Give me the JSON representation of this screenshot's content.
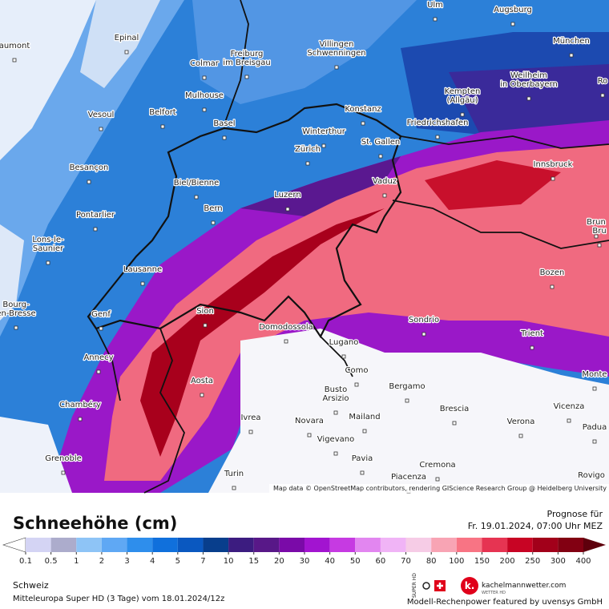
{
  "map": {
    "cities": [
      {
        "lines": [
          "Ulm"
        ]
      },
      {
        "lines": [
          "Augsburg"
        ]
      },
      {
        "lines": [
          "Epinal"
        ]
      },
      {
        "lines": [
          "aumont"
        ]
      },
      {
        "lines": [
          "Freiburg",
          "im Breisgau"
        ]
      },
      {
        "lines": [
          "Villingen",
          "Schwenningen"
        ]
      },
      {
        "lines": [
          "München"
        ]
      },
      {
        "lines": [
          "Colmar"
        ]
      },
      {
        "lines": [
          "Weilheim",
          "in Oberbayern"
        ]
      },
      {
        "lines": [
          "Ro"
        ]
      },
      {
        "lines": [
          "Mulhouse"
        ]
      },
      {
        "lines": [
          "Kempten",
          "(Allgäu)"
        ]
      },
      {
        "lines": [
          "Konstanz"
        ]
      },
      {
        "lines": [
          "Belfort"
        ]
      },
      {
        "lines": [
          "Vesoul"
        ]
      },
      {
        "lines": [
          "Basel"
        ]
      },
      {
        "lines": [
          "Friedrichshafen"
        ]
      },
      {
        "lines": [
          "Winterthur"
        ]
      },
      {
        "lines": [
          "St. Gallen"
        ]
      },
      {
        "lines": [
          "Zürich"
        ]
      },
      {
        "lines": [
          "Besançon"
        ]
      },
      {
        "lines": [
          "Innsbruck"
        ]
      },
      {
        "lines": [
          "Vaduz"
        ]
      },
      {
        "lines": [
          "Biel/Bienne"
        ]
      },
      {
        "lines": [
          "Luzern"
        ]
      },
      {
        "lines": [
          "Bern"
        ]
      },
      {
        "lines": [
          "Pontarlier"
        ]
      },
      {
        "lines": [
          "Brun"
        ]
      },
      {
        "lines": [
          "Bru"
        ]
      },
      {
        "lines": [
          "Lons-le-",
          "Saunier"
        ]
      },
      {
        "lines": [
          "Lausanne"
        ]
      },
      {
        "lines": [
          "Bozen"
        ]
      },
      {
        "lines": [
          "Bourg-",
          "en-Bresse"
        ]
      },
      {
        "lines": [
          "Sion"
        ]
      },
      {
        "lines": [
          "Genf"
        ]
      },
      {
        "lines": [
          "Sondrio"
        ]
      },
      {
        "lines": [
          "Domodossola"
        ]
      },
      {
        "lines": [
          "Trient"
        ]
      },
      {
        "lines": [
          "Lugano"
        ]
      },
      {
        "lines": [
          "Annecy"
        ]
      },
      {
        "lines": [
          "Aosta"
        ]
      },
      {
        "lines": [
          "Como"
        ]
      },
      {
        "lines": [
          "Monte"
        ]
      },
      {
        "lines": [
          "Busto",
          "Arsizio"
        ]
      },
      {
        "lines": [
          "Bergamo"
        ]
      },
      {
        "lines": [
          "Chambéry"
        ]
      },
      {
        "lines": [
          "Brescia"
        ]
      },
      {
        "lines": [
          "Vicenza"
        ]
      },
      {
        "lines": [
          "Ivrea"
        ]
      },
      {
        "lines": [
          "Novara"
        ]
      },
      {
        "lines": [
          "Mailand"
        ]
      },
      {
        "lines": [
          "Verona"
        ]
      },
      {
        "lines": [
          "Padua"
        ]
      },
      {
        "lines": [
          "Vigevano"
        ]
      },
      {
        "lines": [
          "Grenoble"
        ]
      },
      {
        "lines": [
          "Pavia"
        ]
      },
      {
        "lines": [
          "Cremona"
        ]
      },
      {
        "lines": [
          "Turin"
        ]
      },
      {
        "lines": [
          "Rovigo"
        ]
      },
      {
        "lines": [
          "Piacenza"
        ]
      }
    ],
    "attribution": "Map data © OpenStreetMap contributors, rendering GIScience Research Group @ Heidelberg University"
  },
  "legend": {
    "title": "Schneehöhe (cm)",
    "forecast_label": "Prognose für",
    "forecast_time": "Fr. 19.01.2024, 07:00 Uhr MEZ",
    "ticks": [
      0.1,
      0.5,
      1,
      2,
      3,
      4,
      5,
      7,
      10,
      15,
      20,
      30,
      40,
      50,
      60,
      70,
      80,
      100,
      150,
      200,
      250,
      300,
      400
    ],
    "colors": [
      "#ffffff",
      "#d4d4f4",
      "#acaccc",
      "#8ec4f6",
      "#5fa8f4",
      "#2e8eec",
      "#1070dc",
      "#0a58c0",
      "#083e8c",
      "#3c1c80",
      "#581888",
      "#7a0aa8",
      "#a214d0",
      "#c63ae2",
      "#e286f0",
      "#f0b4f6",
      "#f6cce6",
      "#f8a4b4",
      "#f87484",
      "#e63452",
      "#c80424",
      "#a2001a",
      "#820012",
      "#5e000c"
    ]
  },
  "footer": {
    "region": "Schweiz",
    "model": "Mitteleuropa Super HD (3 Tage) vom 18.01.2024/12z",
    "badge": "SUPER HD",
    "brand": "kachelmannwetter.com",
    "brand_sub": "WETTER HD",
    "credit": "Modell-Rechenpower featured by uvensys GmbH"
  }
}
